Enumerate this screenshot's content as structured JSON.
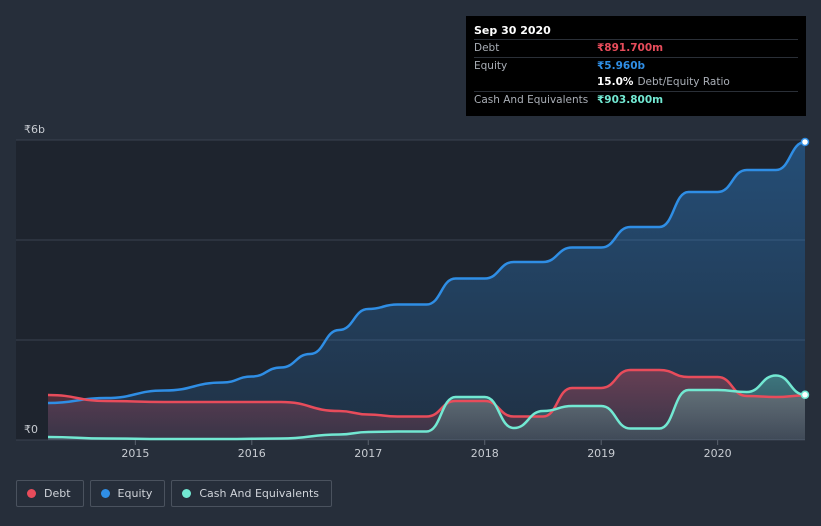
{
  "chart_data": {
    "type": "area",
    "currency": "₹",
    "y_ticks": [
      {
        "value": 6000,
        "label": "₹6b"
      },
      {
        "value": 0,
        "label": "₹0"
      }
    ],
    "x_ticks": [
      2015,
      2016,
      2017,
      2018,
      2019,
      2020
    ],
    "xlim": [
      2014.25,
      2020.75
    ],
    "ylim": [
      0,
      6000
    ],
    "units": "₹ millions",
    "series": [
      {
        "name": "Debt",
        "color": "#e84c5b",
        "points": [
          [
            2014.25,
            900
          ],
          [
            2014.75,
            780
          ],
          [
            2015.25,
            760
          ],
          [
            2015.75,
            760
          ],
          [
            2016.25,
            760
          ],
          [
            2016.75,
            580
          ],
          [
            2017.0,
            510
          ],
          [
            2017.25,
            470
          ],
          [
            2017.5,
            470
          ],
          [
            2017.75,
            780
          ],
          [
            2018.0,
            780
          ],
          [
            2018.25,
            470
          ],
          [
            2018.5,
            470
          ],
          [
            2018.75,
            1040
          ],
          [
            2019.0,
            1040
          ],
          [
            2019.25,
            1400
          ],
          [
            2019.5,
            1400
          ],
          [
            2019.75,
            1260
          ],
          [
            2020.0,
            1260
          ],
          [
            2020.25,
            880
          ],
          [
            2020.5,
            860
          ],
          [
            2020.75,
            891.7
          ]
        ]
      },
      {
        "name": "Equity",
        "color": "#2f8ee5",
        "points": [
          [
            2014.25,
            740
          ],
          [
            2014.75,
            840
          ],
          [
            2015.25,
            990
          ],
          [
            2015.75,
            1150
          ],
          [
            2016.0,
            1270
          ],
          [
            2016.25,
            1450
          ],
          [
            2016.5,
            1720
          ],
          [
            2016.75,
            2200
          ],
          [
            2017.0,
            2620
          ],
          [
            2017.25,
            2710
          ],
          [
            2017.5,
            2710
          ],
          [
            2017.75,
            3230
          ],
          [
            2018.0,
            3230
          ],
          [
            2018.25,
            3560
          ],
          [
            2018.5,
            3560
          ],
          [
            2018.75,
            3850
          ],
          [
            2019.0,
            3850
          ],
          [
            2019.25,
            4260
          ],
          [
            2019.5,
            4260
          ],
          [
            2019.75,
            4960
          ],
          [
            2020.0,
            4960
          ],
          [
            2020.25,
            5400
          ],
          [
            2020.5,
            5400
          ],
          [
            2020.75,
            5960
          ]
        ]
      },
      {
        "name": "Cash And Equivalents",
        "color": "#72e8d2",
        "points": [
          [
            2014.25,
            60
          ],
          [
            2014.75,
            30
          ],
          [
            2015.25,
            20
          ],
          [
            2015.75,
            20
          ],
          [
            2016.25,
            30
          ],
          [
            2016.75,
            110
          ],
          [
            2017.0,
            160
          ],
          [
            2017.25,
            170
          ],
          [
            2017.5,
            170
          ],
          [
            2017.75,
            860
          ],
          [
            2018.0,
            860
          ],
          [
            2018.25,
            240
          ],
          [
            2018.5,
            580
          ],
          [
            2018.75,
            680
          ],
          [
            2019.0,
            680
          ],
          [
            2019.25,
            230
          ],
          [
            2019.5,
            230
          ],
          [
            2019.75,
            1000
          ],
          [
            2020.0,
            1000
          ],
          [
            2020.25,
            960
          ],
          [
            2020.5,
            1290
          ],
          [
            2020.75,
            903.8
          ]
        ]
      }
    ],
    "tooltip": {
      "date": "Sep 30 2020",
      "debt_label": "Debt",
      "debt_value": "₹891.700m",
      "equity_label": "Equity",
      "equity_value": "₹5.960b",
      "ratio_value": "15.0%",
      "ratio_label": "Debt/Equity Ratio",
      "cash_label": "Cash And Equivalents",
      "cash_value": "₹903.800m"
    },
    "legend": [
      {
        "label": "Debt",
        "color": "#e84c5b"
      },
      {
        "label": "Equity",
        "color": "#2f8ee5"
      },
      {
        "label": "Cash And Equivalents",
        "color": "#72e8d2"
      }
    ]
  }
}
